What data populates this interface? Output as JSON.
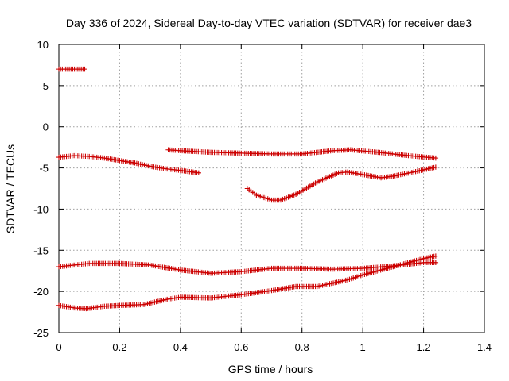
{
  "chart_data": {
    "type": "scatter",
    "title": "Day 336 of 2024, Sidereal Day-to-day VTEC variation (SDTVAR) for receiver dae3",
    "xlabel": "GPS time / hours",
    "ylabel": "SDTVAR / TECUs",
    "xlim": [
      0,
      1.4
    ],
    "ylim": [
      -25,
      10
    ],
    "grid": true,
    "marker": "plus",
    "color": "#cc0000",
    "x_ticks": [
      "0",
      "0.2",
      "0.4",
      "0.6",
      "0.8",
      "1",
      "1.2",
      "1.4"
    ],
    "y_ticks": [
      "10",
      "5",
      "0",
      "-5",
      "-10",
      "-15",
      "-20",
      "-25"
    ],
    "series": [
      {
        "name": "segment-1",
        "points": [
          [
            0.0,
            7.0
          ],
          [
            0.04,
            7.0
          ],
          [
            0.085,
            7.0
          ]
        ]
      },
      {
        "name": "segment-2",
        "points": [
          [
            0.0,
            -3.7
          ],
          [
            0.05,
            -3.5
          ],
          [
            0.1,
            -3.6
          ],
          [
            0.15,
            -3.8
          ],
          [
            0.2,
            -4.1
          ],
          [
            0.25,
            -4.4
          ],
          [
            0.3,
            -4.8
          ],
          [
            0.35,
            -5.1
          ],
          [
            0.4,
            -5.3
          ],
          [
            0.46,
            -5.6
          ]
        ]
      },
      {
        "name": "segment-3",
        "points": [
          [
            0.36,
            -2.8
          ],
          [
            0.4,
            -2.9
          ],
          [
            0.5,
            -3.1
          ],
          [
            0.6,
            -3.2
          ],
          [
            0.7,
            -3.3
          ],
          [
            0.8,
            -3.3
          ],
          [
            0.9,
            -2.9
          ],
          [
            0.96,
            -2.8
          ],
          [
            1.05,
            -3.1
          ],
          [
            1.15,
            -3.5
          ],
          [
            1.24,
            -3.8
          ]
        ]
      },
      {
        "name": "segment-4",
        "points": [
          [
            0.62,
            -7.5
          ],
          [
            0.65,
            -8.3
          ],
          [
            0.7,
            -8.9
          ],
          [
            0.73,
            -8.9
          ],
          [
            0.78,
            -8.2
          ],
          [
            0.85,
            -6.7
          ],
          [
            0.92,
            -5.6
          ],
          [
            0.95,
            -5.5
          ],
          [
            1.0,
            -5.8
          ],
          [
            1.06,
            -6.2
          ],
          [
            1.1,
            -6.0
          ],
          [
            1.18,
            -5.4
          ],
          [
            1.24,
            -4.9
          ]
        ]
      },
      {
        "name": "segment-5",
        "points": [
          [
            0.0,
            -17.0
          ],
          [
            0.05,
            -16.8
          ],
          [
            0.1,
            -16.6
          ],
          [
            0.2,
            -16.6
          ],
          [
            0.3,
            -16.8
          ],
          [
            0.4,
            -17.4
          ],
          [
            0.5,
            -17.8
          ],
          [
            0.6,
            -17.6
          ],
          [
            0.7,
            -17.2
          ],
          [
            0.8,
            -17.2
          ],
          [
            0.9,
            -17.3
          ],
          [
            1.0,
            -17.2
          ],
          [
            1.1,
            -16.9
          ],
          [
            1.2,
            -16.5
          ],
          [
            1.24,
            -16.5
          ]
        ]
      },
      {
        "name": "segment-6",
        "points": [
          [
            0.0,
            -21.7
          ],
          [
            0.05,
            -22.0
          ],
          [
            0.09,
            -22.1
          ],
          [
            0.15,
            -21.8
          ],
          [
            0.2,
            -21.7
          ],
          [
            0.28,
            -21.6
          ],
          [
            0.35,
            -21.0
          ],
          [
            0.4,
            -20.7
          ],
          [
            0.5,
            -20.8
          ],
          [
            0.6,
            -20.4
          ],
          [
            0.7,
            -19.9
          ],
          [
            0.78,
            -19.4
          ],
          [
            0.85,
            -19.4
          ],
          [
            0.95,
            -18.6
          ],
          [
            1.0,
            -18.0
          ],
          [
            1.1,
            -17.0
          ],
          [
            1.2,
            -16.0
          ],
          [
            1.24,
            -15.7
          ]
        ]
      }
    ]
  }
}
